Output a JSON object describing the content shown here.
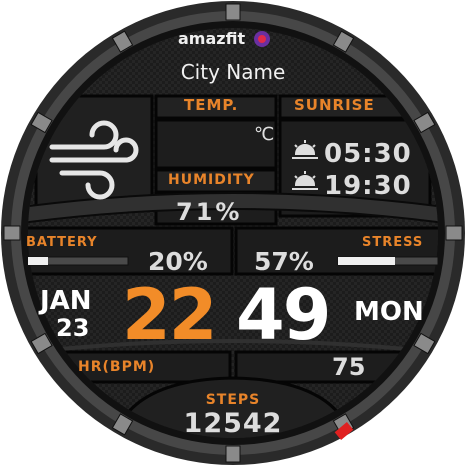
{
  "brand": "amazfit",
  "city": "City Name",
  "weather": {
    "icon": "wind-icon",
    "temp_label": "TEMP.",
    "temp_unit": "℃",
    "humidity_label": "HUMIDITY",
    "humidity_value": "71%"
  },
  "sun": {
    "label": "SUNRISE",
    "sunrise": "05:30",
    "sunset": "19:30",
    "sunrise_icon": "sunrise-icon",
    "sunset_icon": "sunset-icon"
  },
  "battery": {
    "label": "BATTERY",
    "value": "20%",
    "level": 0.2
  },
  "stress": {
    "label": "STRESS",
    "value": "57%",
    "level": 0.57
  },
  "date": {
    "month": "JAN",
    "day": "23",
    "weekday": "MON"
  },
  "time": {
    "hours": "22",
    "minutes": "49"
  },
  "heart": {
    "label": "HR(BPM)",
    "value": "75"
  },
  "steps": {
    "label": "STEPS",
    "value": "12542"
  },
  "colors": {
    "accent": "#f28c28",
    "label": "#e8842a",
    "bezel": "#3a3a3a",
    "panel": "#1a1a1a",
    "indicator": "#e02020"
  }
}
